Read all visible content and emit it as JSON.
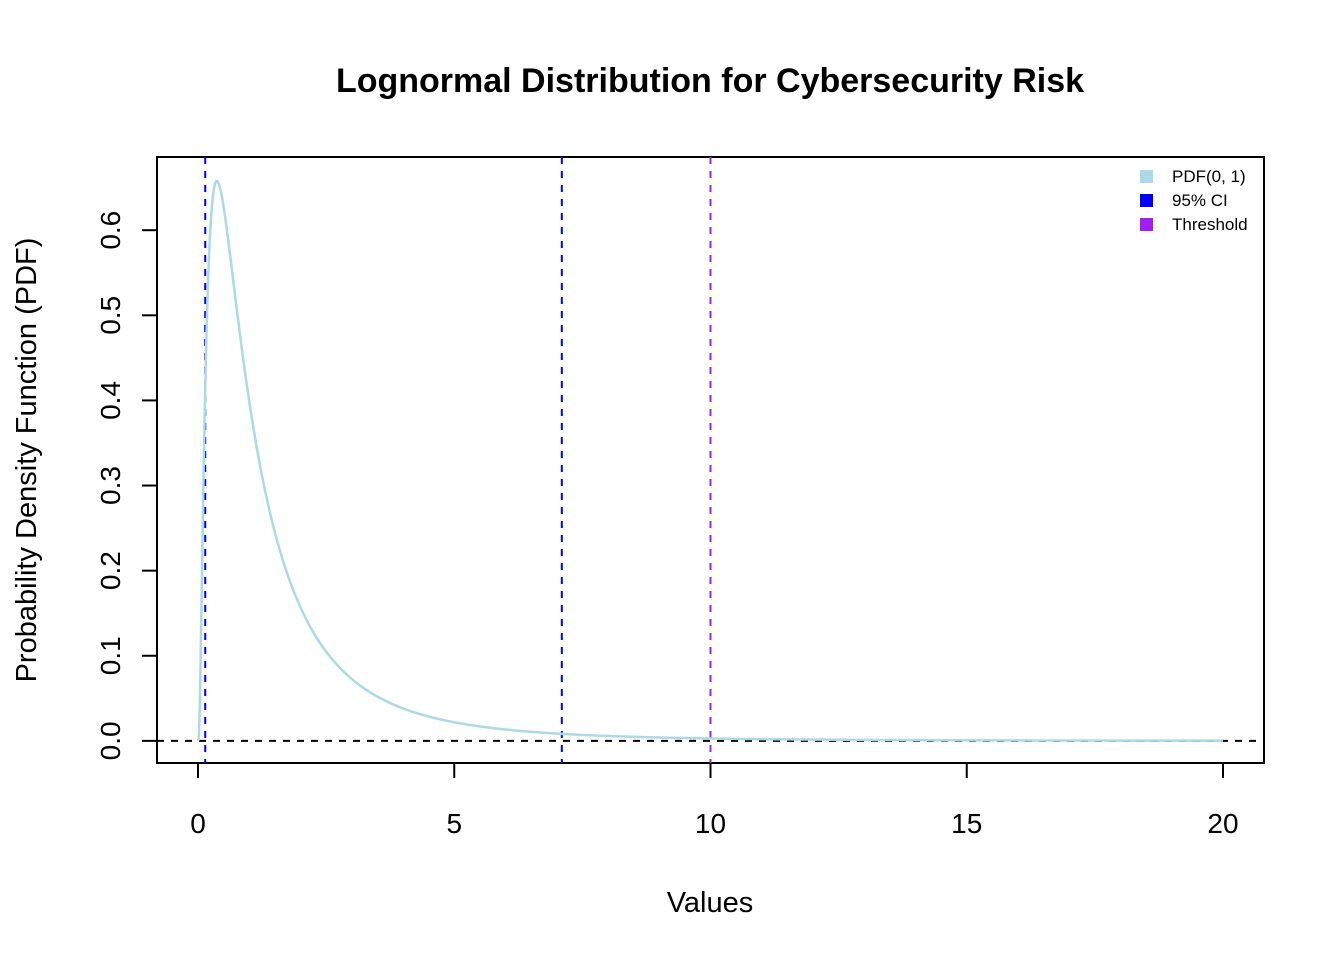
{
  "chart_data": {
    "type": "line",
    "title": "Lognormal Distribution for Cybersecurity Risk",
    "xlabel": "Values",
    "ylabel": "Probability Density Function (PDF)",
    "xlim": [
      -0.8,
      20.8
    ],
    "ylim": [
      -0.026,
      0.686
    ],
    "x_ticks": [
      0,
      5,
      10,
      15,
      20
    ],
    "y_ticks": [
      0.0,
      0.1,
      0.2,
      0.3,
      0.4,
      0.5,
      0.6
    ],
    "x_tick_labels": [
      "0",
      "5",
      "10",
      "15",
      "20"
    ],
    "y_tick_labels": [
      "0.0",
      "0.1",
      "0.2",
      "0.3",
      "0.4",
      "0.5",
      "0.6"
    ],
    "series": [
      {
        "name": "PDF(0, 1)",
        "distribution": "lognormal",
        "meanlog": 0,
        "sdlog": 1,
        "x_range": [
          0,
          20
        ],
        "color": "#ADD8E6"
      }
    ],
    "reference_lines": [
      {
        "orientation": "vertical",
        "x": 0.141,
        "color": "#0000FF",
        "style": "dashed"
      },
      {
        "orientation": "vertical",
        "x": 7.099,
        "color": "#0000FF",
        "style": "dashed"
      },
      {
        "orientation": "vertical",
        "x": 10,
        "color": "#A020F0",
        "style": "dashed"
      },
      {
        "orientation": "horizontal",
        "y": 0,
        "color": "#000000",
        "style": "dashed"
      }
    ],
    "legend": {
      "position": "top-right",
      "items": [
        {
          "label": "PDF(0, 1)",
          "color": "#ADD8E6"
        },
        {
          "label": "95% CI",
          "color": "#0000FF"
        },
        {
          "label": "Threshold",
          "color": "#A020F0"
        }
      ]
    },
    "grid": false
  }
}
